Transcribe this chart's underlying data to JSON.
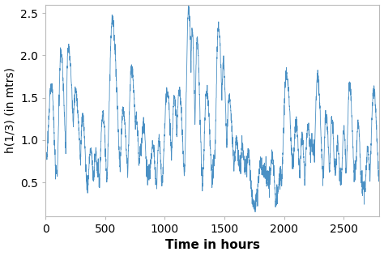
{
  "xlabel": "Time in hours",
  "ylabel": "h(1/3) (in mtrs)",
  "line_color": "#4a90c4",
  "line_width": 0.6,
  "xlim": [
    0,
    2800
  ],
  "ylim_bottom": 0.1,
  "ylim_top": 2.6,
  "xticks": [
    0,
    500,
    1000,
    1500,
    2000,
    2500
  ],
  "yticks": [
    0.5,
    1.0,
    1.5,
    2.0,
    2.5
  ],
  "xlabel_fontsize": 11,
  "ylabel_fontsize": 10,
  "tick_fontsize": 10,
  "seed": 7,
  "n_points": 2800,
  "background_color": "#ffffff",
  "figsize": [
    4.74,
    3.16
  ],
  "dpi": 100
}
